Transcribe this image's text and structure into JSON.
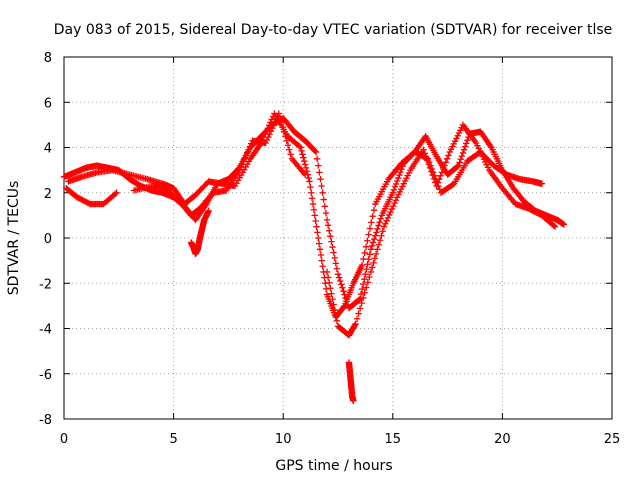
{
  "chart_data": {
    "type": "scatter",
    "title": "Day 083 of 2015, Sidereal Day-to-day VTEC variation (SDTVAR) for receiver tlse",
    "xlabel": "GPS time / hours",
    "ylabel": "SDTVAR / TECUs",
    "xlim": [
      0,
      25
    ],
    "ylim": [
      -8,
      8
    ],
    "x_ticks": [
      "0",
      "5",
      "10",
      "15",
      "20",
      "25"
    ],
    "y_ticks": [
      "8",
      "6",
      "4",
      "2",
      "0",
      "-2",
      "-4",
      "-6",
      "-8"
    ],
    "grid": true,
    "marker": "+",
    "series": [
      {
        "name": "SDTVAR",
        "color": "#ff0000",
        "x": [
          0.0,
          0.5,
          1.0,
          1.5,
          2.0,
          2.5,
          3.0,
          3.5,
          4.0,
          4.5,
          5.0,
          5.5,
          6.0,
          6.5,
          7.0,
          7.5,
          8.0,
          8.5,
          9.0,
          9.5,
          10.0,
          10.5,
          11.0,
          11.5,
          12.0,
          12.5,
          13.0,
          13.5,
          14.0,
          14.5,
          15.0,
          15.5,
          16.0,
          16.5,
          17.0,
          17.5,
          18.0,
          18.5,
          19.0,
          19.5,
          20.0,
          20.5,
          21.0,
          21.5,
          22.0,
          22.5,
          22.8,
          0.2,
          0.8,
          1.5,
          2.2,
          3.0,
          3.8,
          4.5,
          5.0,
          5.5,
          6.0,
          6.6,
          7.2,
          7.8,
          8.5,
          9.0,
          9.6,
          10.2,
          10.8,
          11.2,
          11.6,
          12.0,
          12.4,
          12.8,
          13.2,
          13.6,
          14.2,
          14.8,
          15.4,
          16.0,
          16.6,
          17.2,
          17.8,
          18.4,
          19.0,
          19.6,
          20.2,
          20.8,
          21.4,
          21.8,
          0.1,
          0.6,
          1.2,
          1.8,
          2.4,
          3.2,
          4.0,
          4.6,
          5.2,
          5.8,
          6.2,
          6.8,
          7.4,
          8.0,
          8.6,
          9.2,
          9.8,
          10.4,
          11.0,
          12.0,
          12.5,
          13.0,
          13.3,
          14.0,
          14.6,
          15.2,
          15.8,
          16.4,
          17.0,
          17.6,
          18.2,
          18.8,
          19.4,
          20.0,
          20.6,
          21.2,
          21.8,
          22.4,
          13.0,
          13.05,
          13.1,
          13.15,
          13.2,
          5.8,
          5.9,
          6.0,
          6.1,
          6.2,
          6.3,
          6.4,
          6.6
        ],
        "y": [
          2.7,
          2.9,
          3.1,
          3.2,
          3.1,
          3.0,
          2.6,
          2.3,
          2.1,
          2.0,
          1.8,
          1.4,
          0.8,
          1.5,
          2.4,
          2.6,
          3.1,
          4.0,
          4.5,
          5.0,
          5.3,
          4.7,
          4.3,
          3.8,
          0.8,
          -1.6,
          -3.1,
          -2.7,
          -0.5,
          1.0,
          2.0,
          3.3,
          3.8,
          4.5,
          3.6,
          2.8,
          3.2,
          4.6,
          4.7,
          4.0,
          3.0,
          2.2,
          1.6,
          1.2,
          1.0,
          0.8,
          0.6,
          2.5,
          2.7,
          2.9,
          3.0,
          2.8,
          2.6,
          2.4,
          2.2,
          1.5,
          1.9,
          2.5,
          2.4,
          2.3,
          3.5,
          4.2,
          5.5,
          4.5,
          4.0,
          2.5,
          0.0,
          -2.5,
          -3.5,
          -3.0,
          -2.0,
          -1.2,
          1.5,
          2.6,
          3.3,
          3.8,
          3.5,
          2.0,
          2.4,
          3.4,
          3.8,
          3.2,
          2.8,
          2.6,
          2.5,
          2.4,
          2.2,
          1.8,
          1.5,
          1.5,
          2.0,
          2.1,
          2.3,
          2.2,
          1.7,
          1.0,
          1.3,
          2.0,
          2.1,
          3.0,
          4.3,
          4.2,
          5.5,
          3.5,
          2.8,
          -1.5,
          -3.9,
          -4.3,
          -3.8,
          -1.5,
          0.5,
          1.8,
          3.0,
          3.9,
          2.3,
          3.8,
          5.0,
          4.2,
          3.0,
          2.2,
          1.5,
          1.3,
          1.0,
          0.5,
          -5.5,
          -6.0,
          -6.5,
          -7.0,
          -7.2,
          -0.2,
          -0.4,
          -0.7,
          -0.5,
          0.0,
          0.4,
          0.8,
          1.2
        ]
      }
    ]
  }
}
